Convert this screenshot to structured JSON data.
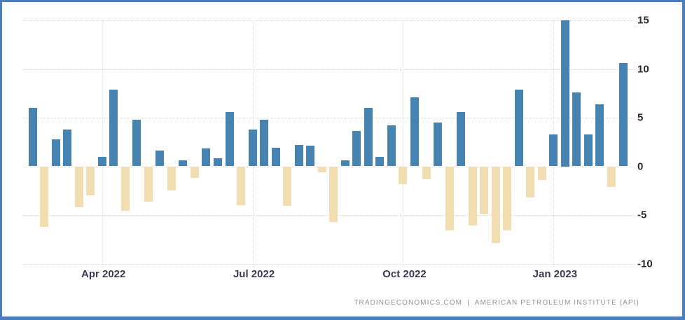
{
  "chart_data": {
    "type": "bar",
    "description": "Weekly crude oil stocks change bar chart (positive builds in blue, negative draws in tan)",
    "values": [
      6.0,
      -6.2,
      2.8,
      3.8,
      -4.2,
      -3.0,
      1.0,
      7.9,
      -4.6,
      4.8,
      -3.6,
      1.6,
      -2.5,
      0.6,
      -1.2,
      1.8,
      0.8,
      5.6,
      -4.0,
      3.8,
      4.8,
      1.9,
      -4.1,
      2.2,
      2.1,
      -0.6,
      -5.7,
      0.6,
      3.6,
      6.0,
      1.0,
      4.2,
      -1.8,
      7.1,
      -1.3,
      4.5,
      -6.6,
      5.6,
      -6.1,
      -4.9,
      -7.9,
      -6.6,
      7.9,
      -3.2,
      -1.4,
      3.3,
      15.0,
      7.6,
      3.3,
      6.4,
      -2.1,
      10.6
    ],
    "x_ticks": [
      {
        "label": "Apr 2022",
        "bar_index": 6
      },
      {
        "label": "Jul 2022",
        "bar_index": 19
      },
      {
        "label": "Oct 2022",
        "bar_index": 32
      },
      {
        "label": "Jan 2023",
        "bar_index": 45
      }
    ],
    "y_ticks": [
      {
        "label": "15",
        "value": 15
      },
      {
        "label": "10",
        "value": 10
      },
      {
        "label": "5",
        "value": 5
      },
      {
        "label": "0",
        "value": 0
      },
      {
        "label": "-5",
        "value": -5
      },
      {
        "label": "-10",
        "value": -10
      }
    ],
    "ylim": [
      -10,
      15
    ],
    "grid": "dotted",
    "legend": "none",
    "title": "",
    "xlabel": "",
    "ylabel": "",
    "positive_color": "#4783b0",
    "negative_color": "#f2ddb1"
  },
  "colors": {
    "frame_border": "#4a7ebb",
    "background": "#ffffff",
    "hgrid": "#d9d9d9",
    "vgrid": "#e4d6d6",
    "y_label_text": "#2b2b33",
    "x_label_text": "#3a3a52",
    "attribution_text": "#8d949b"
  },
  "attribution": {
    "source": "TRADINGECONOMICS.COM",
    "separator": "|",
    "provider": "AMERICAN PETROLEUM INSTITUTE (API)"
  }
}
